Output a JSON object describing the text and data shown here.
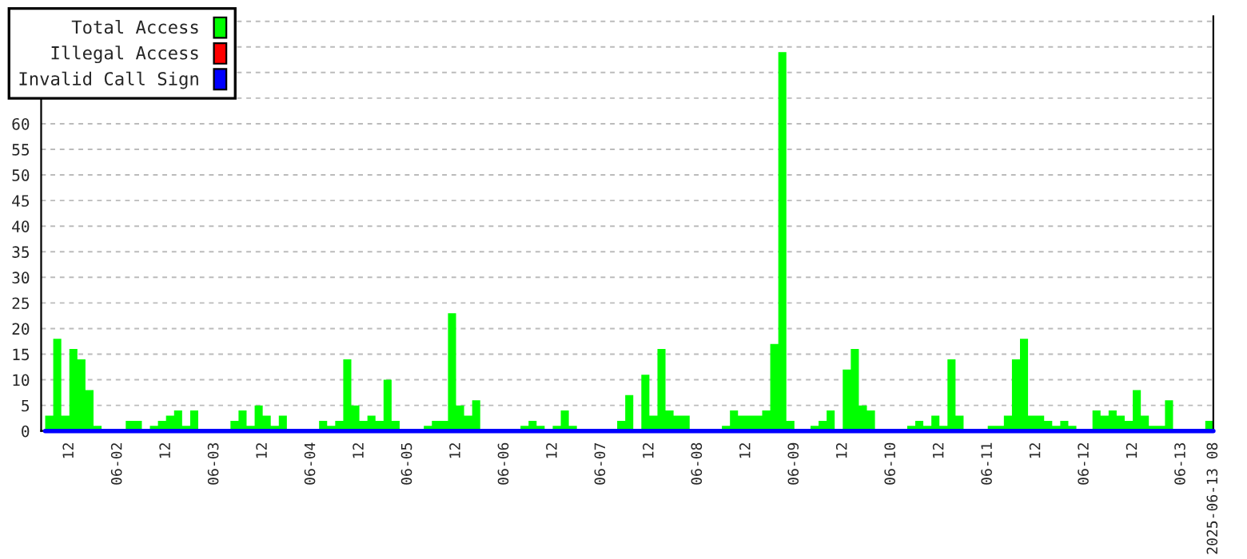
{
  "chart_data": {
    "type": "area",
    "x": [
      "2025-06-01T06:00",
      "2025-06-01T08:00",
      "2025-06-01T10:00",
      "2025-06-01T12:00",
      "2025-06-01T14:00",
      "2025-06-01T16:00",
      "2025-06-01T18:00",
      "2025-06-01T20:00",
      "2025-06-01T22:00",
      "2025-06-02T00:00",
      "2025-06-02T02:00",
      "2025-06-02T04:00",
      "2025-06-02T06:00",
      "2025-06-02T08:00",
      "2025-06-02T10:00",
      "2025-06-02T12:00",
      "2025-06-02T14:00",
      "2025-06-02T16:00",
      "2025-06-02T18:00",
      "2025-06-02T20:00",
      "2025-06-02T22:00",
      "2025-06-03T00:00",
      "2025-06-03T02:00",
      "2025-06-03T04:00",
      "2025-06-03T06:00",
      "2025-06-03T08:00",
      "2025-06-03T10:00",
      "2025-06-03T12:00",
      "2025-06-03T14:00",
      "2025-06-03T16:00",
      "2025-06-03T18:00",
      "2025-06-03T20:00",
      "2025-06-03T22:00",
      "2025-06-04T00:00",
      "2025-06-04T02:00",
      "2025-06-04T04:00",
      "2025-06-04T06:00",
      "2025-06-04T08:00",
      "2025-06-04T10:00",
      "2025-06-04T12:00",
      "2025-06-04T14:00",
      "2025-06-04T16:00",
      "2025-06-04T18:00",
      "2025-06-04T20:00",
      "2025-06-04T22:00",
      "2025-06-05T00:00",
      "2025-06-05T02:00",
      "2025-06-05T04:00",
      "2025-06-05T06:00",
      "2025-06-05T08:00",
      "2025-06-05T10:00",
      "2025-06-05T12:00",
      "2025-06-05T14:00",
      "2025-06-05T16:00",
      "2025-06-05T18:00",
      "2025-06-05T20:00",
      "2025-06-05T22:00",
      "2025-06-06T00:00",
      "2025-06-06T02:00",
      "2025-06-06T04:00",
      "2025-06-06T06:00",
      "2025-06-06T08:00",
      "2025-06-06T10:00",
      "2025-06-06T12:00",
      "2025-06-06T14:00",
      "2025-06-06T16:00",
      "2025-06-06T18:00",
      "2025-06-06T20:00",
      "2025-06-06T22:00",
      "2025-06-07T00:00",
      "2025-06-07T02:00",
      "2025-06-07T04:00",
      "2025-06-07T06:00",
      "2025-06-07T08:00",
      "2025-06-07T10:00",
      "2025-06-07T12:00",
      "2025-06-07T14:00",
      "2025-06-07T16:00",
      "2025-06-07T18:00",
      "2025-06-07T20:00",
      "2025-06-07T22:00",
      "2025-06-08T00:00",
      "2025-06-08T02:00",
      "2025-06-08T04:00",
      "2025-06-08T06:00",
      "2025-06-08T08:00",
      "2025-06-08T10:00",
      "2025-06-08T12:00",
      "2025-06-08T14:00",
      "2025-06-08T16:00",
      "2025-06-08T18:00",
      "2025-06-08T20:00",
      "2025-06-08T22:00",
      "2025-06-09T00:00",
      "2025-06-09T02:00",
      "2025-06-09T04:00",
      "2025-06-09T06:00",
      "2025-06-09T08:00",
      "2025-06-09T10:00",
      "2025-06-09T12:00",
      "2025-06-09T14:00",
      "2025-06-09T16:00",
      "2025-06-09T18:00",
      "2025-06-09T20:00",
      "2025-06-09T22:00",
      "2025-06-10T00:00",
      "2025-06-10T02:00",
      "2025-06-10T04:00",
      "2025-06-10T06:00",
      "2025-06-10T08:00",
      "2025-06-10T10:00",
      "2025-06-10T12:00",
      "2025-06-10T14:00",
      "2025-06-10T16:00",
      "2025-06-10T18:00",
      "2025-06-10T20:00",
      "2025-06-10T22:00",
      "2025-06-11T00:00",
      "2025-06-11T02:00",
      "2025-06-11T04:00",
      "2025-06-11T06:00",
      "2025-06-11T08:00",
      "2025-06-11T10:00",
      "2025-06-11T12:00",
      "2025-06-11T14:00",
      "2025-06-11T16:00",
      "2025-06-11T18:00",
      "2025-06-11T20:00",
      "2025-06-11T22:00",
      "2025-06-12T00:00",
      "2025-06-12T02:00",
      "2025-06-12T04:00",
      "2025-06-12T06:00",
      "2025-06-12T08:00",
      "2025-06-12T10:00",
      "2025-06-12T12:00",
      "2025-06-12T14:00",
      "2025-06-12T16:00",
      "2025-06-12T18:00",
      "2025-06-12T20:00",
      "2025-06-12T22:00",
      "2025-06-13T00:00",
      "2025-06-13T02:00",
      "2025-06-13T04:00",
      "2025-06-13T06:00",
      "2025-06-13T08:00"
    ],
    "series": [
      {
        "name": "Total Access",
        "color": "#00ff00",
        "values": [
          3,
          18,
          3,
          16,
          14,
          8,
          1,
          0,
          0,
          0,
          2,
          2,
          0,
          1,
          2,
          3,
          4,
          1,
          4,
          0,
          0,
          0,
          0,
          2,
          4,
          1,
          5,
          3,
          1,
          3,
          0,
          0,
          0,
          0,
          2,
          1,
          2,
          14,
          5,
          2,
          3,
          2,
          10,
          2,
          0,
          0,
          0,
          1,
          2,
          2,
          23,
          5,
          3,
          6,
          0,
          0,
          0,
          0,
          0,
          1,
          2,
          1,
          0,
          1,
          4,
          1,
          0,
          0,
          0,
          0,
          0,
          2,
          7,
          0,
          11,
          3,
          16,
          4,
          3,
          3,
          0,
          0,
          0,
          0,
          1,
          4,
          3,
          3,
          3,
          4,
          17,
          74,
          2,
          0,
          0,
          1,
          2,
          4,
          0,
          12,
          16,
          5,
          4,
          0,
          0,
          0,
          0,
          1,
          2,
          1,
          3,
          1,
          14,
          3,
          0,
          0,
          0,
          1,
          1,
          3,
          14,
          18,
          3,
          3,
          2,
          1,
          2,
          1,
          0,
          0,
          4,
          3,
          4,
          3,
          2,
          8,
          3,
          1,
          1,
          6,
          0,
          0,
          0,
          0,
          2,
          2
        ]
      },
      {
        "name": "Illegal Access",
        "type": "line",
        "color": "#ff0000",
        "values": [
          null,
          null,
          null,
          null,
          null,
          null,
          null,
          null,
          null,
          null,
          null,
          null,
          null,
          null,
          null,
          null,
          null,
          null,
          null,
          null,
          null,
          null,
          null,
          null,
          null,
          null,
          null,
          null,
          null,
          null,
          null,
          null,
          null,
          null,
          null,
          null,
          null,
          null,
          null,
          null,
          null,
          null,
          null,
          null,
          null,
          null,
          null,
          null,
          null,
          null,
          null,
          null,
          null,
          null,
          null,
          null,
          null,
          null,
          null,
          null,
          null,
          null,
          null,
          null,
          null,
          null,
          null,
          null,
          null,
          null,
          null,
          null,
          null,
          null,
          null,
          null,
          null,
          null,
          null,
          null,
          null,
          null,
          null,
          null,
          null,
          null,
          null,
          null,
          null,
          null,
          null,
          null,
          null,
          null,
          null,
          null,
          null,
          null,
          null,
          null,
          null,
          null,
          null,
          null,
          null,
          null,
          null,
          null,
          null,
          null,
          null,
          null,
          null,
          null,
          null,
          null,
          null,
          null,
          null,
          null,
          null,
          null,
          null,
          null,
          null,
          null,
          null,
          null,
          null,
          null,
          null,
          null,
          null,
          null,
          null,
          null,
          null,
          null,
          null,
          null,
          null,
          null,
          null,
          null,
          null,
          null
        ]
      },
      {
        "name": "Invalid Call Sign",
        "type": "line",
        "color": "#0000ff",
        "values": [
          0,
          0,
          0,
          0,
          0,
          0,
          0,
          0,
          0,
          0,
          0,
          0,
          0,
          0,
          0,
          0,
          0,
          0,
          0,
          0,
          0,
          0,
          0,
          0,
          0,
          0,
          0,
          0,
          0,
          0,
          0,
          0,
          0,
          0,
          0,
          0,
          0,
          0,
          0,
          0,
          0,
          0,
          0,
          0,
          0,
          0,
          0,
          0,
          0,
          0,
          0,
          0,
          0,
          0,
          0,
          0,
          0,
          0,
          0,
          0,
          0,
          0,
          0,
          0,
          0,
          0,
          0,
          0,
          0,
          0,
          0,
          0,
          0,
          0,
          0,
          0,
          0,
          0,
          0,
          0,
          0,
          0,
          0,
          0,
          0,
          0,
          0,
          0,
          0,
          0,
          0,
          0,
          0,
          0,
          0,
          0,
          0,
          0,
          0,
          0,
          0,
          0,
          0,
          0,
          0,
          0,
          0,
          0,
          0,
          0,
          0,
          0,
          0,
          0,
          0,
          0,
          0,
          0,
          0,
          0,
          0,
          0,
          0,
          0,
          0,
          0,
          0,
          0,
          0,
          0,
          0,
          0,
          0,
          0,
          0,
          0,
          0,
          0,
          0,
          0,
          0,
          0,
          0,
          0,
          0,
          0
        ]
      }
    ],
    "xlim": [
      "2025-06-01T05:00",
      "2025-06-13T08:00"
    ],
    "xticks": [
      {
        "value": "2025-06-01T12:00",
        "label": "12"
      },
      {
        "value": "2025-06-02T00:00",
        "label": "06-02"
      },
      {
        "value": "2025-06-02T12:00",
        "label": "12"
      },
      {
        "value": "2025-06-03T00:00",
        "label": "06-03"
      },
      {
        "value": "2025-06-03T12:00",
        "label": "12"
      },
      {
        "value": "2025-06-04T00:00",
        "label": "06-04"
      },
      {
        "value": "2025-06-04T12:00",
        "label": "12"
      },
      {
        "value": "2025-06-05T00:00",
        "label": "06-05"
      },
      {
        "value": "2025-06-05T12:00",
        "label": "12"
      },
      {
        "value": "2025-06-06T00:00",
        "label": "06-06"
      },
      {
        "value": "2025-06-06T12:00",
        "label": "12"
      },
      {
        "value": "2025-06-07T00:00",
        "label": "06-07"
      },
      {
        "value": "2025-06-07T12:00",
        "label": "12"
      },
      {
        "value": "2025-06-08T00:00",
        "label": "06-08"
      },
      {
        "value": "2025-06-08T12:00",
        "label": "12"
      },
      {
        "value": "2025-06-09T00:00",
        "label": "06-09"
      },
      {
        "value": "2025-06-09T12:00",
        "label": "12"
      },
      {
        "value": "2025-06-10T00:00",
        "label": "06-10"
      },
      {
        "value": "2025-06-10T12:00",
        "label": "12"
      },
      {
        "value": "2025-06-11T00:00",
        "label": "06-11"
      },
      {
        "value": "2025-06-11T12:00",
        "label": "12"
      },
      {
        "value": "2025-06-12T00:00",
        "label": "06-12"
      },
      {
        "value": "2025-06-12T12:00",
        "label": "12"
      },
      {
        "value": "2025-06-13T00:00",
        "label": "06-13"
      },
      {
        "value": "2025-06-13T08:00",
        "label": "2025-06-13 08"
      }
    ],
    "ylim": [
      0,
      81
    ],
    "yticks": [
      0,
      5,
      10,
      15,
      20,
      25,
      30,
      35,
      40,
      45,
      50,
      55,
      60,
      {
        "value": 65,
        "label": null
      },
      {
        "value": 70,
        "label": null
      },
      {
        "value": 75,
        "label": null
      },
      {
        "value": 80,
        "label": null
      }
    ],
    "grid": "y",
    "legend": "top left"
  }
}
